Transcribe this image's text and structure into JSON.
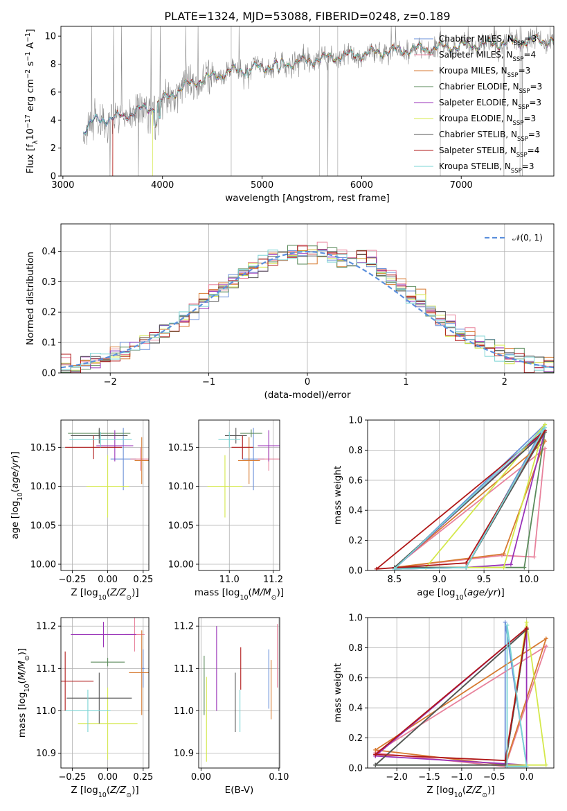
{
  "figure_title": "PLATE=1324, MJD=53088, FIBERID=0248, z=0.189",
  "colors": {
    "chabrier_miles": "#6a8fd8",
    "salpeter_miles": "#e8829c",
    "kroupa_miles": "#d77a30",
    "chabrier_elodie": "#5a8a5a",
    "salpeter_elodie": "#9932b8",
    "kroupa_elodie": "#d4e84a",
    "chabrier_stelib": "#555555",
    "salpeter_stelib": "#b01818",
    "kroupa_stelib": "#7ad4d4",
    "data_spectrum": "#888888",
    "gaussian": "#5b8fdc"
  },
  "chart_data": [
    {
      "id": "spectrum",
      "type": "line",
      "title": "PLATE=1324, MJD=53088, FIBERID=0248, z=0.189",
      "xlabel": "wavelength [Angstrom, rest frame]",
      "ylabel": "Flux [f_λ 10^-17 erg cm^-2 s^-1 A^-1]",
      "xlim": [
        2980,
        7930
      ],
      "ylim": [
        0,
        10.7
      ],
      "xticks": [
        3000,
        4000,
        5000,
        6000,
        7000
      ],
      "yticks": [
        0,
        2,
        4,
        6,
        8,
        10
      ],
      "legend_position": "top-right",
      "legend": [
        {
          "label": "Chabrier MILES, N_SSP=3",
          "color": "#6a8fd8"
        },
        {
          "label": "Salpeter MILES, N_SSP=4",
          "color": "#e8829c"
        },
        {
          "label": "Kroupa MILES, N_SSP=3",
          "color": "#d77a30"
        },
        {
          "label": "Chabrier ELODIE, N_SSP=3",
          "color": "#5a8a5a"
        },
        {
          "label": "Salpeter ELODIE, N_SSP=3",
          "color": "#9932b8"
        },
        {
          "label": "Kroupa ELODIE, N_SSP=3",
          "color": "#d4e84a"
        },
        {
          "label": "Chabrier STELIB, N_SSP=3",
          "color": "#555555"
        },
        {
          "label": "Salpeter STELIB, N_SSP=4",
          "color": "#b01818"
        },
        {
          "label": "Kroupa STELIB, N_SSP=3",
          "color": "#7ad4d4"
        }
      ],
      "continuum": {
        "x": [
          3200,
          3300,
          3400,
          3500,
          3600,
          3700,
          3800,
          3900,
          4000,
          4100,
          4200,
          4300,
          4400,
          4500,
          4600,
          4700,
          4800,
          4900,
          5000,
          5200,
          5400,
          5600,
          5800,
          6000,
          6200,
          6400,
          6600,
          6800,
          7000,
          7200,
          7400,
          7600,
          7800,
          7930
        ],
        "y": [
          3.2,
          3.9,
          4.1,
          4.1,
          4.3,
          4.5,
          4.8,
          4.9,
          5.4,
          5.9,
          6.3,
          6.7,
          6.9,
          7.1,
          7.3,
          7.5,
          7.6,
          7.7,
          7.8,
          8.0,
          8.2,
          8.4,
          8.6,
          8.7,
          8.9,
          9.0,
          9.1,
          9.2,
          9.3,
          9.4,
          9.5,
          9.6,
          9.7,
          9.7
        ]
      }
    },
    {
      "id": "residuals",
      "type": "step",
      "xlabel": "(data-model)/error",
      "ylabel": "Normed distribution",
      "xlim": [
        -2.5,
        2.5
      ],
      "ylim": [
        0,
        0.49
      ],
      "xticks": [
        -2,
        -1,
        0,
        1,
        2
      ],
      "yticks": [
        0.0,
        0.1,
        0.2,
        0.3,
        0.4
      ],
      "legend_position": "top-right",
      "gaussian_label": "𝒩(0, 1)",
      "bin_width": 0.1
    },
    {
      "id": "age_vs_Z",
      "type": "errorbar",
      "xlabel": "Z [log10(Z/Z⊙)]",
      "ylabel": "age [log10(age/yr)]",
      "xlim": [
        -0.33,
        0.29
      ],
      "ylim": [
        9.992,
        10.185
      ],
      "xticks": [
        -0.25,
        0.0,
        0.25
      ],
      "yticks": [
        10.0,
        10.05,
        10.1,
        10.15
      ],
      "points": [
        {
          "color": "#6a8fd8",
          "x": 0.11,
          "xerr": 0.09,
          "y": 10.135,
          "yerr": 0.04
        },
        {
          "color": "#e8829c",
          "x": 0.23,
          "xerr": 0.07,
          "y": 10.135,
          "yerr": 0.015
        },
        {
          "color": "#d77a30",
          "x": 0.24,
          "xerr": 0.05,
          "y": 10.133,
          "yerr": 0.03
        },
        {
          "color": "#5a8a5a",
          "x": -0.06,
          "xerr": 0.22,
          "y": 10.168,
          "yerr": 0.005
        },
        {
          "color": "#9932b8",
          "x": 0.05,
          "xerr": 0.13,
          "y": 10.152,
          "yerr": 0.02
        },
        {
          "color": "#d4e84a",
          "x": 0.0,
          "xerr": 0.15,
          "y": 10.1,
          "yerr": 0.04
        },
        {
          "color": "#555555",
          "x": -0.06,
          "xerr": 0.2,
          "y": 10.165,
          "yerr": 0.01
        },
        {
          "color": "#b01818",
          "x": -0.1,
          "xerr": 0.2,
          "y": 10.15,
          "yerr": 0.015
        },
        {
          "color": "#7ad4d4",
          "x": -0.05,
          "xerr": 0.22,
          "y": 10.16,
          "yerr": 0.01
        }
      ]
    },
    {
      "id": "age_vs_mass",
      "type": "errorbar",
      "xlabel": "mass [log10(M/M⊙)]",
      "ylabel": "",
      "xlim": [
        10.86,
        11.23
      ],
      "ylim": [
        9.992,
        10.185
      ],
      "xticks": [
        11.0,
        11.2
      ],
      "yticks": [
        10.0,
        10.05,
        10.1,
        10.15
      ],
      "points": [
        {
          "color": "#6a8fd8",
          "x": 11.11,
          "xerr": 0.05,
          "y": 10.135,
          "yerr": 0.04
        },
        {
          "color": "#e8829c",
          "x": 11.18,
          "xerr": 0.05,
          "y": 10.135,
          "yerr": 0.015
        },
        {
          "color": "#d77a30",
          "x": 11.09,
          "xerr": 0.05,
          "y": 10.133,
          "yerr": 0.03
        },
        {
          "color": "#5a8a5a",
          "x": 11.1,
          "xerr": 0.05,
          "y": 10.168,
          "yerr": 0.005
        },
        {
          "color": "#9932b8",
          "x": 11.18,
          "xerr": 0.05,
          "y": 10.152,
          "yerr": 0.02
        },
        {
          "color": "#d4e84a",
          "x": 10.98,
          "xerr": 0.08,
          "y": 10.1,
          "yerr": 0.04
        },
        {
          "color": "#555555",
          "x": 11.03,
          "xerr": 0.05,
          "y": 10.165,
          "yerr": 0.01
        },
        {
          "color": "#b01818",
          "x": 11.06,
          "xerr": 0.05,
          "y": 10.15,
          "yerr": 0.015
        },
        {
          "color": "#7ad4d4",
          "x": 11.0,
          "xerr": 0.05,
          "y": 10.16,
          "yerr": 0.01
        }
      ]
    },
    {
      "id": "weight_vs_age",
      "type": "line",
      "xlabel": "age [log10(age/yr)]",
      "ylabel": "mass weight",
      "xlim": [
        8.2,
        10.28
      ],
      "ylim": [
        0,
        1.0
      ],
      "xticks": [
        8.5,
        9.0,
        9.5,
        10.0
      ],
      "yticks": [
        0.0,
        0.2,
        0.4,
        0.6,
        0.8,
        1.0
      ],
      "series": [
        {
          "color": "#6a8fd8",
          "x": [
            8.5,
            9.3,
            10.18,
            8.5
          ],
          "y": [
            0.01,
            0.02,
            0.97,
            0.01
          ]
        },
        {
          "color": "#e8829c",
          "x": [
            8.5,
            9.7,
            10.06,
            10.18,
            8.5
          ],
          "y": [
            0.02,
            0.1,
            0.09,
            0.81,
            0.02
          ]
        },
        {
          "color": "#d77a30",
          "x": [
            8.5,
            9.72,
            10.18,
            8.5
          ],
          "y": [
            0.02,
            0.11,
            0.86,
            0.02
          ]
        },
        {
          "color": "#5a8a5a",
          "x": [
            8.5,
            9.3,
            9.95,
            10.18,
            8.5
          ],
          "y": [
            0.02,
            0.02,
            0.02,
            0.92,
            0.02
          ]
        },
        {
          "color": "#9932b8",
          "x": [
            8.5,
            9.3,
            9.8,
            10.18,
            8.5
          ],
          "y": [
            0.01,
            0.02,
            0.04,
            0.93,
            0.01
          ]
        },
        {
          "color": "#d4e84a",
          "x": [
            8.85,
            10.18,
            9.72,
            8.85
          ],
          "y": [
            0.02,
            0.97,
            0.02,
            0.02
          ]
        },
        {
          "color": "#555555",
          "x": [
            8.5,
            9.3,
            10.18,
            8.5
          ],
          "y": [
            0.02,
            0.02,
            0.92,
            0.02
          ]
        },
        {
          "color": "#b01818",
          "x": [
            8.3,
            9.3,
            10.18,
            8.3
          ],
          "y": [
            0.01,
            0.05,
            0.93,
            0.01
          ]
        },
        {
          "color": "#7ad4d4",
          "x": [
            8.5,
            9.3,
            10.18,
            8.5
          ],
          "y": [
            0.01,
            0.02,
            0.95,
            0.01
          ]
        }
      ]
    },
    {
      "id": "mass_vs_Z",
      "type": "errorbar",
      "xlabel": "Z [log10(Z/Z⊙)]",
      "ylabel": "mass [log10(M/M⊙)]",
      "xlim": [
        -0.33,
        0.29
      ],
      "ylim": [
        10.865,
        11.22
      ],
      "xticks": [
        -0.25,
        0.0,
        0.25
      ],
      "yticks": [
        10.9,
        11.0,
        11.1,
        11.2
      ],
      "points": [
        {
          "color": "#6a8fd8",
          "x": 0.25,
          "xerr": 0.01,
          "y": 11.1,
          "yerr": 0.045
        },
        {
          "color": "#e8829c",
          "x": 0.19,
          "xerr": 0.07,
          "y": 11.18,
          "yerr": 0.04
        },
        {
          "color": "#d77a30",
          "x": 0.24,
          "xerr": 0.09,
          "y": 11.09,
          "yerr": 0.1
        },
        {
          "color": "#5a8a5a",
          "x": 0.0,
          "xerr": 0.12,
          "y": 11.115,
          "yerr": 0.01
        },
        {
          "color": "#9932b8",
          "x": -0.03,
          "xerr": 0.23,
          "y": 11.18,
          "yerr": 0.03
        },
        {
          "color": "#d4e84a",
          "x": 0.0,
          "xerr": 0.21,
          "y": 10.97,
          "yerr": 0.085
        },
        {
          "color": "#555555",
          "x": -0.06,
          "xerr": 0.23,
          "y": 11.03,
          "yerr": 0.06
        },
        {
          "color": "#b01818",
          "x": -0.3,
          "xerr": 0.2,
          "y": 11.07,
          "yerr": 0.07
        },
        {
          "color": "#7ad4d4",
          "x": -0.14,
          "xerr": 0.16,
          "y": 11.0,
          "yerr": 0.05
        }
      ]
    },
    {
      "id": "mass_vs_ebv",
      "type": "errorbar",
      "xlabel": "E(B-V)",
      "ylabel": "",
      "xlim": [
        -0.003,
        0.101
      ],
      "ylim": [
        10.865,
        11.22
      ],
      "xticks": [
        0.0,
        0.1
      ],
      "yticks": [
        10.9,
        11.0,
        11.1,
        11.2
      ],
      "points": [
        {
          "color": "#6a8fd8",
          "x": 0.087,
          "y": 11.075,
          "yerr": 0.07
        },
        {
          "color": "#e8829c",
          "x": 0.098,
          "y": 11.13,
          "yerr": 0.075
        },
        {
          "color": "#d77a30",
          "x": 0.09,
          "y": 11.05,
          "yerr": 0.07
        },
        {
          "color": "#5a8a5a",
          "x": 0.004,
          "y": 11.06,
          "yerr": 0.07
        },
        {
          "color": "#9932b8",
          "x": 0.02,
          "y": 11.1,
          "yerr": 0.1
        },
        {
          "color": "#d4e84a",
          "x": 0.007,
          "y": 10.98,
          "yerr": 0.1
        },
        {
          "color": "#555555",
          "x": 0.044,
          "y": 11.02,
          "yerr": 0.07
        },
        {
          "color": "#b01818",
          "x": 0.051,
          "y": 11.1,
          "yerr": 0.05
        },
        {
          "color": "#7ad4d4",
          "x": 0.05,
          "y": 11.0,
          "yerr": 0.05
        }
      ]
    },
    {
      "id": "weight_vs_Z",
      "type": "line",
      "xlabel": "Z [log10(Z/Z⊙)]",
      "ylabel": "mass weight",
      "xlim": [
        -2.45,
        0.42
      ],
      "ylim": [
        0,
        1.0
      ],
      "xticks": [
        -2.0,
        -1.5,
        -1.0,
        -0.5,
        0.0
      ],
      "yticks": [
        0.0,
        0.2,
        0.4,
        0.6,
        0.8,
        1.0
      ],
      "series": [
        {
          "color": "#6a8fd8",
          "x": [
            -0.33,
            -0.33,
            0.0,
            -0.33
          ],
          "y": [
            0.01,
            0.97,
            0.02,
            0.01
          ]
        },
        {
          "color": "#e8829c",
          "x": [
            -2.33,
            -0.33,
            0.3,
            -2.33
          ],
          "y": [
            0.1,
            0.01,
            0.81,
            0.1
          ]
        },
        {
          "color": "#d77a30",
          "x": [
            -2.33,
            0.3,
            -0.33,
            -2.33
          ],
          "y": [
            0.12,
            0.86,
            0.02,
            0.12
          ]
        },
        {
          "color": "#5a8a5a",
          "x": [
            -2.33,
            0.0,
            -0.33,
            -2.33
          ],
          "y": [
            0.02,
            0.92,
            0.02,
            0.02
          ]
        },
        {
          "color": "#9932b8",
          "x": [
            -2.33,
            0.0,
            0.0,
            -2.33
          ],
          "y": [
            0.08,
            0.93,
            0.02,
            0.08
          ]
        },
        {
          "color": "#d4e84a",
          "x": [
            -0.33,
            0.0,
            0.3,
            -0.33
          ],
          "y": [
            0.02,
            0.97,
            0.02,
            0.02
          ]
        },
        {
          "color": "#555555",
          "x": [
            -2.33,
            -0.33,
            0.0,
            -2.33
          ],
          "y": [
            0.02,
            0.02,
            0.92,
            0.02
          ]
        },
        {
          "color": "#b01818",
          "x": [
            -2.33,
            -0.33,
            0.0,
            -2.33
          ],
          "y": [
            0.09,
            0.05,
            0.93,
            0.09
          ]
        },
        {
          "color": "#7ad4d4",
          "x": [
            -0.3,
            -0.3,
            0.0,
            -0.3
          ],
          "y": [
            0.01,
            0.95,
            0.01,
            0.01
          ]
        }
      ]
    }
  ]
}
